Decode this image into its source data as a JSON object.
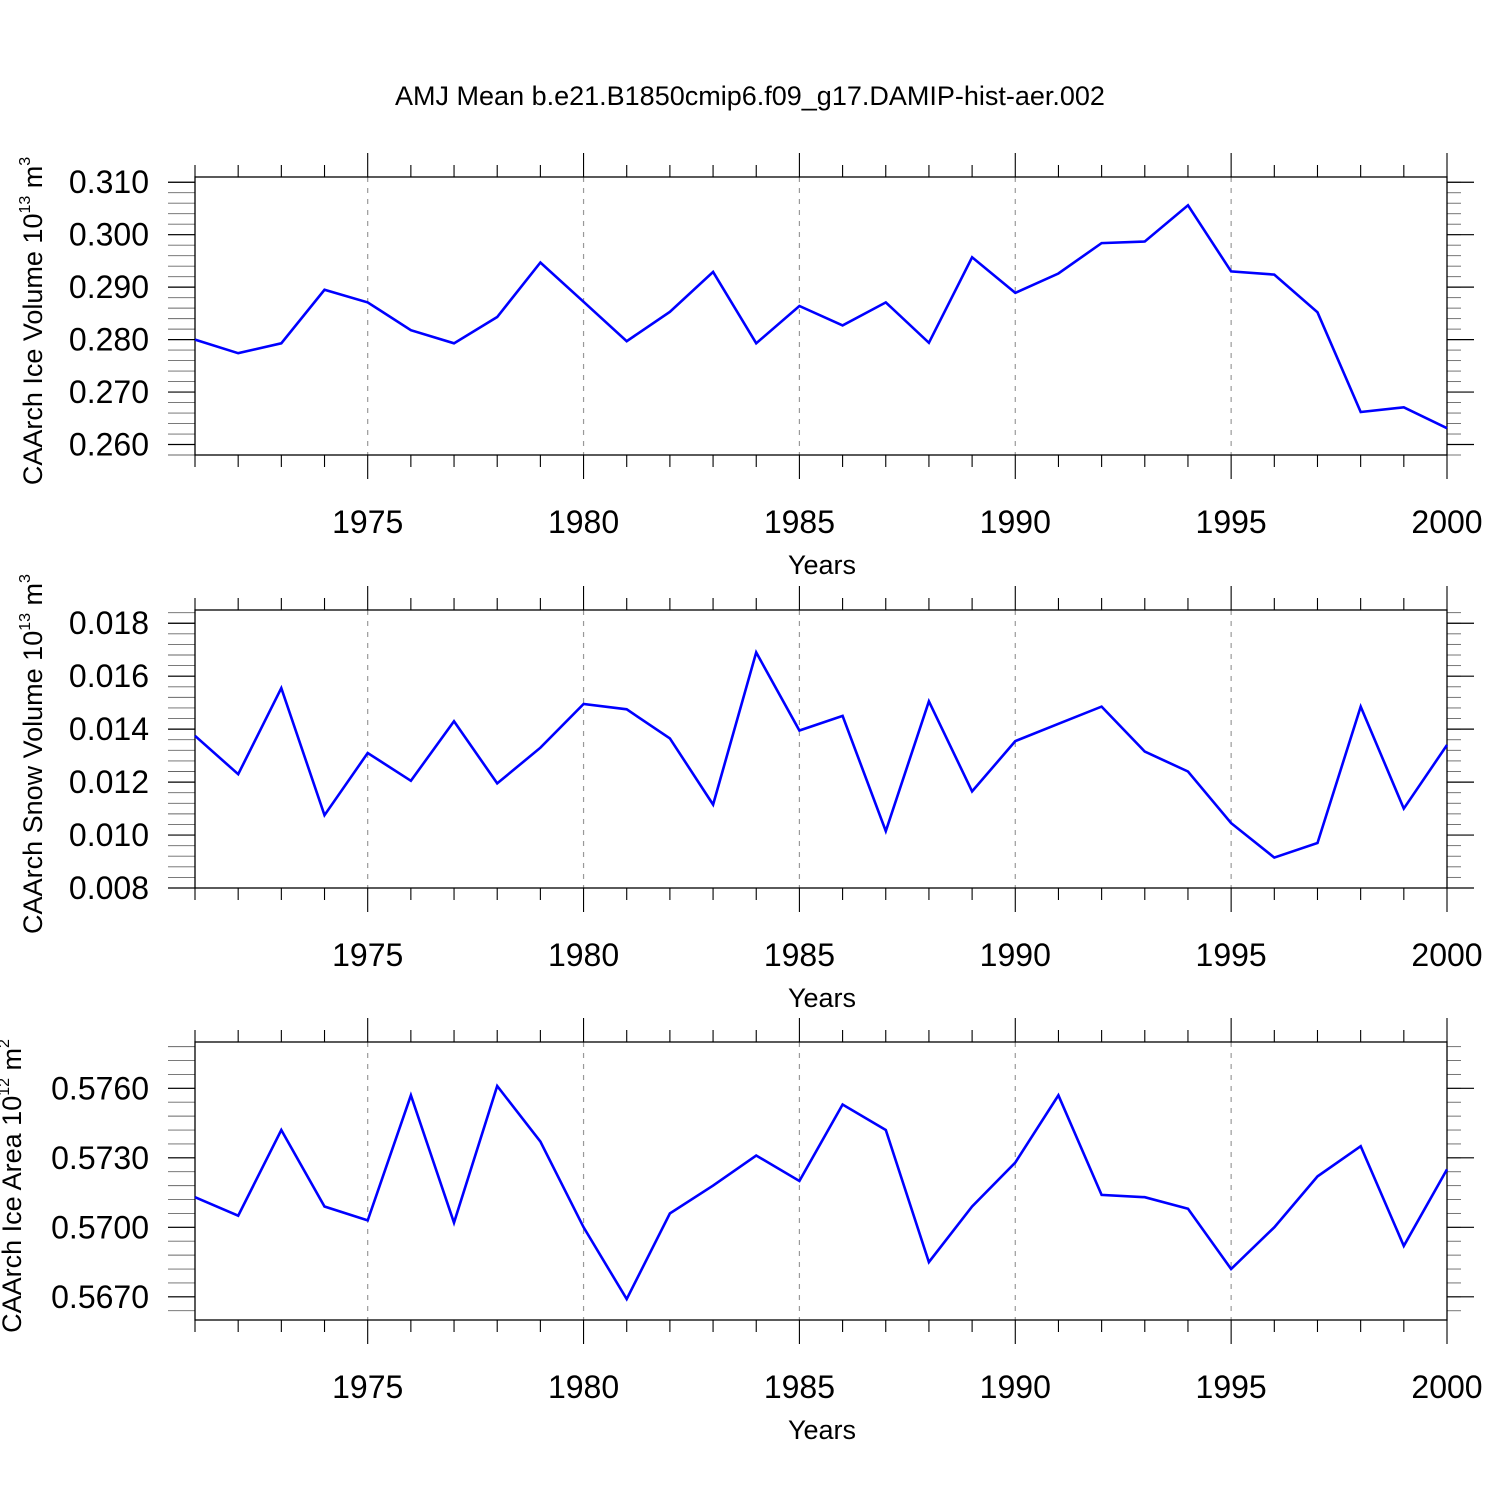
{
  "title": "AMJ Mean b.e21.B1850cmip6.f09_g17.DAMIP-hist-aer.002",
  "colors": {
    "line": "#0000ff",
    "axis": "#000000",
    "grid": "#999999"
  },
  "chart_data": [
    {
      "type": "line",
      "ylabel": {
        "prefix": "CAArch Ice Volume 10",
        "exp": "13",
        "unit": "m",
        "unit_exp": "3"
      },
      "xlabel": "Years",
      "xlim": [
        1971,
        2000
      ],
      "ylim": [
        0.258,
        0.311
      ],
      "yticks": [
        "0.260",
        "0.270",
        "0.280",
        "0.290",
        "0.300",
        "0.310"
      ],
      "xticks": [
        "1975",
        "1980",
        "1985",
        "1990",
        "1995",
        "2000"
      ],
      "x": [
        1971,
        1972,
        1973,
        1974,
        1975,
        1976,
        1977,
        1978,
        1979,
        1980,
        1981,
        1982,
        1983,
        1984,
        1985,
        1986,
        1987,
        1988,
        1989,
        1990,
        1991,
        1992,
        1993,
        1994,
        1995,
        1996,
        1997,
        1998,
        1999,
        2000
      ],
      "values": [
        0.28,
        0.2774,
        0.2793,
        0.2895,
        0.2871,
        0.2818,
        0.2793,
        0.2843,
        0.2947,
        0.2872,
        0.2797,
        0.2853,
        0.2929,
        0.2793,
        0.2864,
        0.2827,
        0.2871,
        0.2794,
        0.2957,
        0.2889,
        0.2926,
        0.2984,
        0.2987,
        0.3056,
        0.293,
        0.2924,
        0.2852,
        0.2662,
        0.2671,
        0.2631
      ],
      "grid_x": true
    },
    {
      "type": "line",
      "ylabel": {
        "prefix": "CAArch Snow Volume 10",
        "exp": "13",
        "unit": "m",
        "unit_exp": "3"
      },
      "xlabel": "Years",
      "xlim": [
        1971,
        2000
      ],
      "ylim": [
        0.008,
        0.0185
      ],
      "yticks": [
        "0.008",
        "0.010",
        "0.012",
        "0.014",
        "0.016",
        "0.018"
      ],
      "xticks": [
        "1975",
        "1980",
        "1985",
        "1990",
        "1995",
        "2000"
      ],
      "x": [
        1971,
        1972,
        1973,
        1974,
        1975,
        1976,
        1977,
        1978,
        1979,
        1980,
        1981,
        1982,
        1983,
        1984,
        1985,
        1986,
        1987,
        1988,
        1989,
        1990,
        1991,
        1992,
        1993,
        1994,
        1995,
        1996,
        1997,
        1998,
        1999,
        2000
      ],
      "values": [
        0.01375,
        0.0123,
        0.01555,
        0.01075,
        0.0131,
        0.01205,
        0.0143,
        0.01195,
        0.0133,
        0.01495,
        0.01475,
        0.01365,
        0.01115,
        0.0169,
        0.01395,
        0.0145,
        0.01015,
        0.01505,
        0.01165,
        0.01355,
        0.0142,
        0.01485,
        0.01315,
        0.0124,
        0.01045,
        0.00915,
        0.0097,
        0.01485,
        0.011,
        0.0134
      ],
      "grid_x": true
    },
    {
      "type": "line",
      "ylabel": {
        "prefix": "CAArch Ice Area 10",
        "exp": "12",
        "unit": "m",
        "unit_exp": "2"
      },
      "xlabel": "Years",
      "xlim": [
        1971,
        2000
      ],
      "ylim": [
        0.566,
        0.578
      ],
      "yticks": [
        "0.5670",
        "0.5700",
        "0.5730",
        "0.5760"
      ],
      "xticks": [
        "1975",
        "1980",
        "1985",
        "1990",
        "1995",
        "2000"
      ],
      "x": [
        1971,
        1972,
        1973,
        1974,
        1975,
        1976,
        1977,
        1978,
        1979,
        1980,
        1981,
        1982,
        1983,
        1984,
        1985,
        1986,
        1987,
        1988,
        1989,
        1990,
        1991,
        1992,
        1993,
        1994,
        1995,
        1996,
        1997,
        1998,
        1999,
        2000
      ],
      "values": [
        0.5713,
        0.5705,
        0.5742,
        0.5709,
        0.5703,
        0.5757,
        0.5702,
        0.5761,
        0.5737,
        0.57,
        0.5669,
        0.5706,
        0.5718,
        0.5731,
        0.572,
        0.5753,
        0.5742,
        0.5685,
        0.5709,
        0.5728,
        0.5757,
        0.5714,
        0.5713,
        0.5708,
        0.5682,
        0.57,
        0.5722,
        0.5735,
        0.5692,
        0.5725
      ],
      "grid_x": true
    }
  ]
}
